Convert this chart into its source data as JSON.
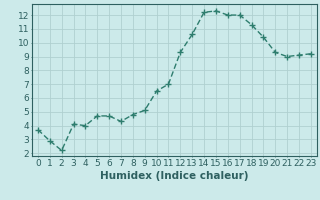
{
  "x": [
    0,
    1,
    2,
    3,
    4,
    5,
    6,
    7,
    8,
    9,
    10,
    11,
    12,
    13,
    14,
    15,
    16,
    17,
    18,
    19,
    20,
    21,
    22,
    23
  ],
  "y": [
    3.7,
    2.9,
    2.2,
    4.1,
    4.0,
    4.7,
    4.7,
    4.3,
    4.8,
    5.1,
    6.5,
    7.0,
    9.3,
    10.6,
    12.2,
    12.3,
    12.0,
    12.0,
    11.3,
    10.4,
    9.3,
    9.0,
    9.1,
    9.2
  ],
  "line_color": "#2e7d6e",
  "marker": "+",
  "marker_color": "#2e7d6e",
  "bg_color": "#cceaea",
  "grid_color": "#b0d0d0",
  "axis_color": "#2e6060",
  "xlabel": "Humidex (Indice chaleur)",
  "xlabel_fontsize": 7.5,
  "xlim_min": -0.5,
  "xlim_max": 23.5,
  "ylim_min": 1.8,
  "ylim_max": 12.8,
  "xticks": [
    0,
    1,
    2,
    3,
    4,
    5,
    6,
    7,
    8,
    9,
    10,
    11,
    12,
    13,
    14,
    15,
    16,
    17,
    18,
    19,
    20,
    21,
    22,
    23
  ],
  "yticks": [
    2,
    3,
    4,
    5,
    6,
    7,
    8,
    9,
    10,
    11,
    12
  ],
  "tick_fontsize": 6.5,
  "linewidth": 1.0,
  "markersize": 4.5
}
